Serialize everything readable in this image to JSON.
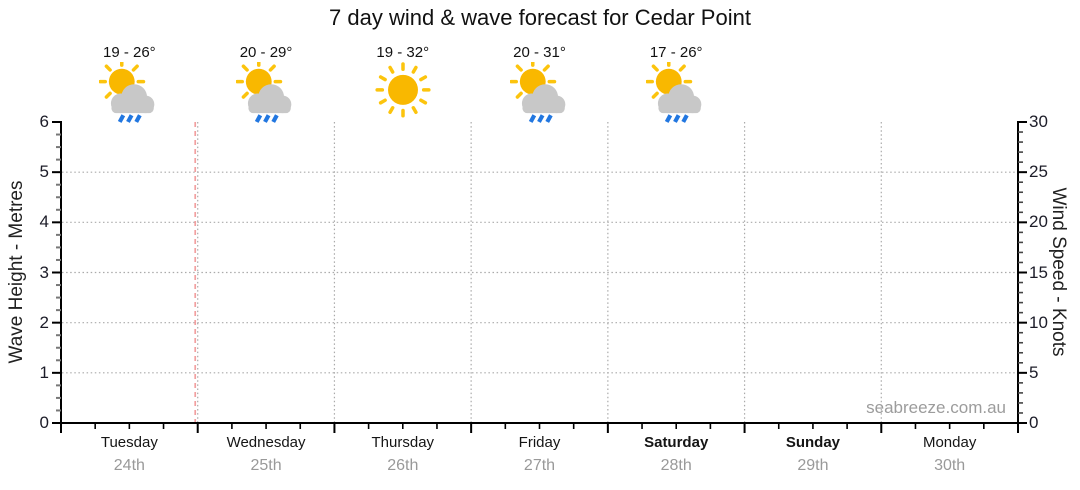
{
  "title": "7 day wind & wave forecast for Cedar Point",
  "watermark": "seabreeze.com.au",
  "chart_data": {
    "type": "line",
    "title": "7 day wind & wave forecast for Cedar Point",
    "series": [],
    "left_axis": {
      "label": "Wave Height - Metres",
      "min": 0,
      "max": 6,
      "major_step": 1,
      "minor_step": 0.25,
      "tick_labels": [
        "0",
        "1",
        "2",
        "3",
        "4",
        "5",
        "6"
      ]
    },
    "right_axis": {
      "label": "Wind Speed - Knots",
      "min": 0,
      "max": 30,
      "major_step": 5,
      "minor_step": 1,
      "tick_labels": [
        "0",
        "5",
        "10",
        "15",
        "20",
        "25",
        "30"
      ]
    },
    "x_axis": {
      "minor_ticks_per_day": 4,
      "days": [
        {
          "name": "Tuesday",
          "date": "24th",
          "bold": false
        },
        {
          "name": "Wednesday",
          "date": "25th",
          "bold": false
        },
        {
          "name": "Thursday",
          "date": "26th",
          "bold": false
        },
        {
          "name": "Friday",
          "date": "27th",
          "bold": false
        },
        {
          "name": "Saturday",
          "date": "28th",
          "bold": true
        },
        {
          "name": "Sunday",
          "date": "29th",
          "bold": true
        },
        {
          "name": "Monday",
          "date": "30th",
          "bold": false
        }
      ]
    },
    "daily_forecast": [
      {
        "day": "Tuesday",
        "temp_range": "19 - 26°",
        "icon": "sun-cloud-rain"
      },
      {
        "day": "Wednesday",
        "temp_range": "20 - 29°",
        "icon": "sun-cloud-rain"
      },
      {
        "day": "Thursday",
        "temp_range": "19 - 32°",
        "icon": "sun"
      },
      {
        "day": "Friday",
        "temp_range": "20 - 31°",
        "icon": "sun-cloud-rain"
      },
      {
        "day": "Saturday",
        "temp_range": "17 - 26°",
        "icon": "sun-cloud-rain"
      }
    ],
    "current_time_marker": {
      "at_day_boundary": 1,
      "color": "#f2a0a0"
    },
    "grid": {
      "horizontal_at": [
        1,
        2,
        3,
        4,
        5
      ],
      "vertical_at_day_boundaries": [
        1,
        2,
        3,
        4,
        5,
        6
      ],
      "color": "#aaaaaa"
    }
  },
  "colors": {
    "sun_core": "#F9B800",
    "sun_ray": "#FCC40D",
    "cloud": "#C8C8C8",
    "rain": "#2277E0",
    "marker_red": "#f2a0a0",
    "grid_gray": "#aaaaaa",
    "date_gray": "#999999",
    "axis_black": "#000000"
  }
}
